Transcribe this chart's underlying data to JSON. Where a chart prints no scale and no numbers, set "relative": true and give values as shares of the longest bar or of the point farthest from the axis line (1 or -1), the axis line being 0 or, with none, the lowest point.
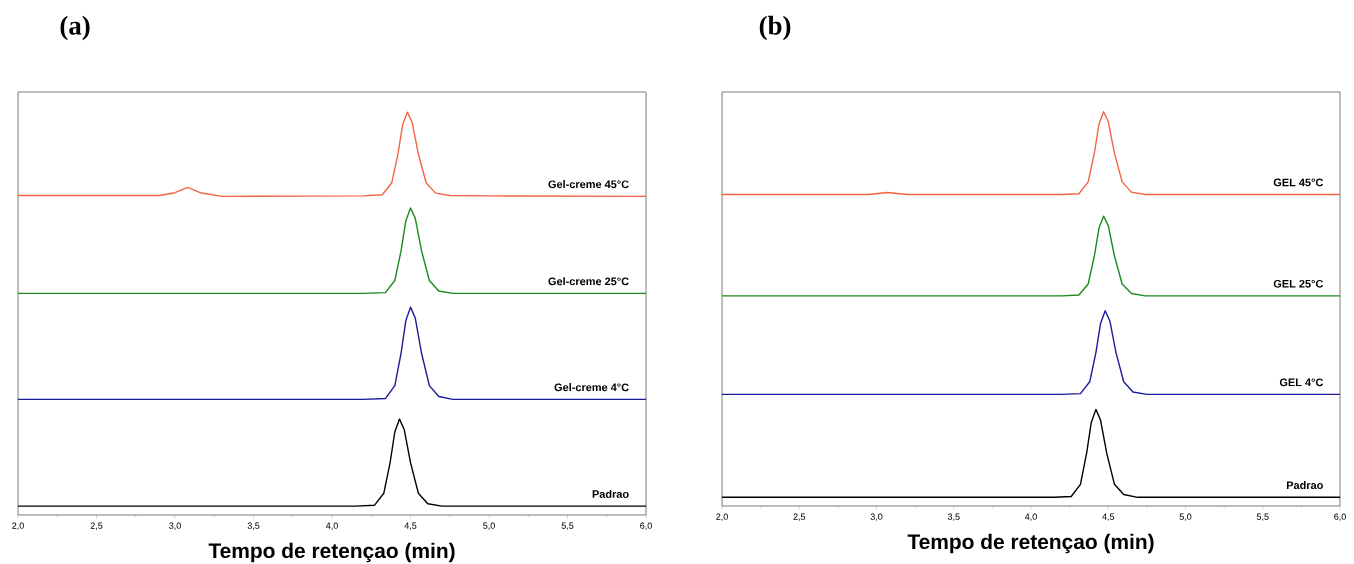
{
  "chart_data": [
    {
      "type": "line",
      "title": "(a)",
      "xlabel": "Tempo de retençao (min)",
      "xlim": [
        2,
        6
      ],
      "relative": true,
      "xticks": [
        {
          "value": 2,
          "label": "2,0"
        },
        {
          "value": 2.5,
          "label": "2,5"
        },
        {
          "value": 3,
          "label": "3,0"
        },
        {
          "value": 3.5,
          "label": "3,5"
        },
        {
          "value": 4,
          "label": "4,0"
        },
        {
          "value": 4.5,
          "label": "4,5"
        },
        {
          "value": 5,
          "label": "5,0"
        },
        {
          "value": 5.5,
          "label": "5,5"
        },
        {
          "value": 6,
          "label": "6,0"
        }
      ],
      "series": [
        {
          "name": "Gel-creme 45°C",
          "color": "#f26444",
          "x": [
            2.0,
            2.9,
            3.0,
            3.08,
            3.16,
            3.3,
            4.2,
            4.32,
            4.38,
            4.42,
            4.45,
            4.48,
            4.51,
            4.55,
            4.6,
            4.66,
            4.75,
            5.0,
            6.0
          ],
          "values": [
            0.793,
            0.793,
            0.8,
            0.813,
            0.8,
            0.791,
            0.792,
            0.795,
            0.824,
            0.896,
            0.969,
            1.0,
            0.975,
            0.896,
            0.824,
            0.799,
            0.793,
            0.792,
            0.791
          ]
        },
        {
          "name": "Gel-creme 25°C",
          "color": "#1a8a1a",
          "x": [
            2.0,
            4.2,
            4.34,
            4.4,
            4.44,
            4.47,
            4.5,
            4.53,
            4.57,
            4.62,
            4.68,
            4.77,
            6.0
          ],
          "values": [
            0.55,
            0.55,
            0.552,
            0.582,
            0.656,
            0.73,
            0.762,
            0.737,
            0.656,
            0.582,
            0.556,
            0.55,
            0.55
          ]
        },
        {
          "name": "Gel-creme  4°C",
          "color": "#1a1a9a",
          "x": [
            2.0,
            4.2,
            4.34,
            4.4,
            4.44,
            4.47,
            4.5,
            4.53,
            4.57,
            4.62,
            4.68,
            4.77,
            6.0
          ],
          "values": [
            0.287,
            0.287,
            0.289,
            0.321,
            0.402,
            0.482,
            0.516,
            0.489,
            0.402,
            0.321,
            0.294,
            0.287,
            0.287
          ]
        },
        {
          "name": "Padrao",
          "color": "#000000",
          "x": [
            2.0,
            4.15,
            4.27,
            4.33,
            4.37,
            4.4,
            4.43,
            4.46,
            4.5,
            4.55,
            4.61,
            4.7,
            6.0
          ],
          "values": [
            0.022,
            0.022,
            0.024,
            0.054,
            0.13,
            0.206,
            0.238,
            0.212,
            0.13,
            0.054,
            0.028,
            0.022,
            0.022
          ]
        }
      ]
    },
    {
      "type": "line",
      "title": "(b)",
      "xlabel": "Tempo de retençao (min)",
      "xlim": [
        2,
        6
      ],
      "relative": true,
      "xticks": [
        {
          "value": 2,
          "label": "2,0"
        },
        {
          "value": 2.5,
          "label": "2,5"
        },
        {
          "value": 3,
          "label": "3,0"
        },
        {
          "value": 3.5,
          "label": "3,5"
        },
        {
          "value": 4,
          "label": "4,0"
        },
        {
          "value": 4.5,
          "label": "4,5"
        },
        {
          "value": 5,
          "label": "5,0"
        },
        {
          "value": 5.5,
          "label": "5,5"
        },
        {
          "value": 6,
          "label": "6,0"
        }
      ],
      "series": [
        {
          "name": "GEL 45°C",
          "color": "#f26444",
          "x": [
            2.0,
            2.95,
            3.07,
            3.2,
            4.2,
            4.31,
            4.37,
            4.41,
            4.44,
            4.47,
            4.5,
            4.54,
            4.59,
            4.65,
            4.74,
            6.0
          ],
          "values": [
            0.79,
            0.79,
            0.795,
            0.79,
            0.79,
            0.792,
            0.822,
            0.895,
            0.969,
            1.0,
            0.975,
            0.895,
            0.822,
            0.796,
            0.79,
            0.79
          ]
        },
        {
          "name": "GEL 25°C",
          "color": "#1a8a1a",
          "x": [
            2.0,
            4.2,
            4.31,
            4.37,
            4.41,
            4.44,
            4.47,
            4.5,
            4.54,
            4.59,
            4.65,
            4.74,
            6.0
          ],
          "values": [
            0.533,
            0.533,
            0.535,
            0.563,
            0.634,
            0.705,
            0.735,
            0.711,
            0.634,
            0.563,
            0.539,
            0.533,
            0.533
          ]
        },
        {
          "name": "GEL 4°C",
          "color": "#1a1a9a",
          "x": [
            2.0,
            4.2,
            4.32,
            4.38,
            4.42,
            4.45,
            4.48,
            4.51,
            4.55,
            4.6,
            4.66,
            4.75,
            6.0
          ],
          "values": [
            0.283,
            0.283,
            0.285,
            0.315,
            0.389,
            0.463,
            0.495,
            0.47,
            0.389,
            0.315,
            0.289,
            0.283,
            0.283
          ]
        },
        {
          "name": "Padrao",
          "color": "#000000",
          "x": [
            2.0,
            4.15,
            4.26,
            4.32,
            4.36,
            4.39,
            4.42,
            4.45,
            4.49,
            4.54,
            4.6,
            4.69,
            6.0
          ],
          "values": [
            0.022,
            0.022,
            0.024,
            0.055,
            0.134,
            0.212,
            0.245,
            0.218,
            0.134,
            0.055,
            0.029,
            0.022,
            0.022
          ]
        }
      ]
    }
  ]
}
